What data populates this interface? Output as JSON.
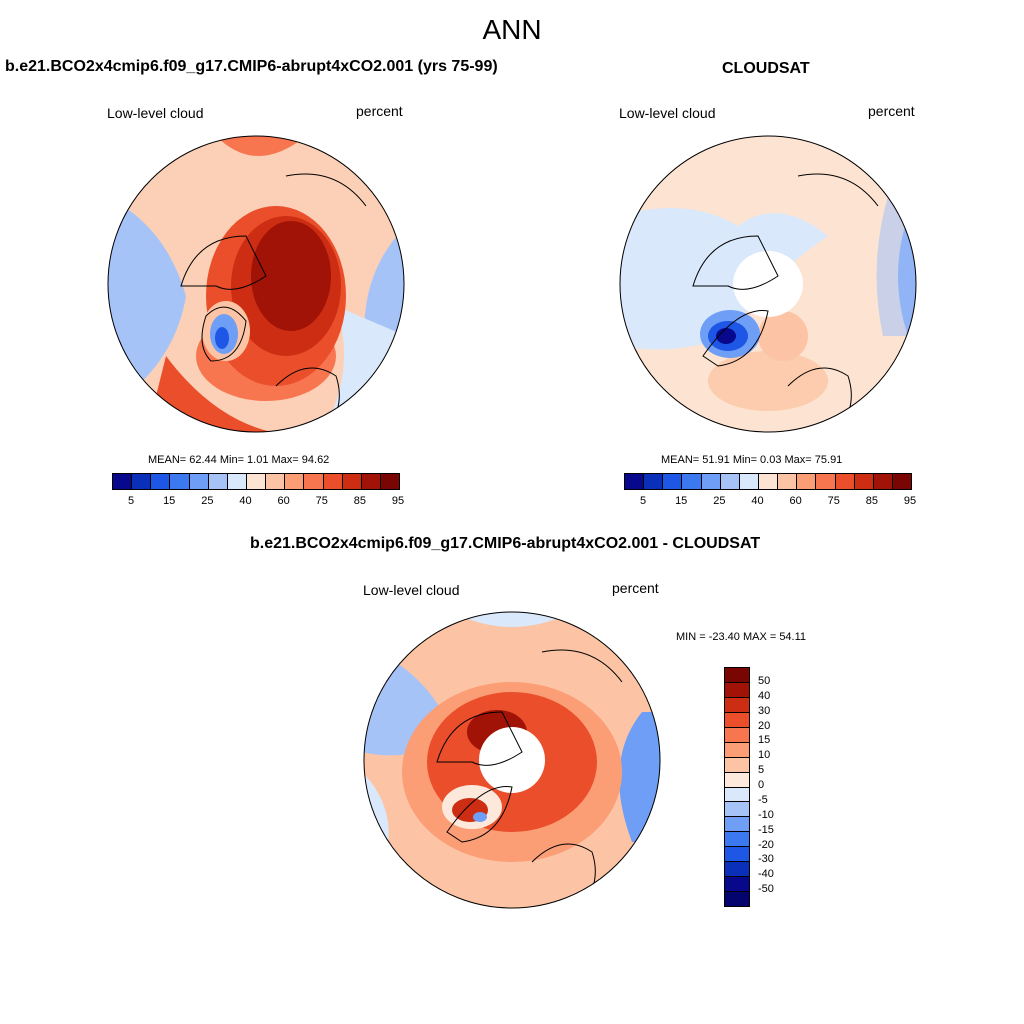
{
  "title": "ANN",
  "panels": {
    "model": {
      "header": "b.e21.BCO2x4cmip6.f09_g17.CMIP6-abrupt4xCO2.001 (yrs 75-99)",
      "left_label": "Low-level cloud",
      "right_label": "percent",
      "stats": "MEAN=  62.44  Min=   1.01  Max=  94.62"
    },
    "obs": {
      "header": "CLOUDSAT",
      "left_label": "Low-level cloud",
      "right_label": "percent",
      "stats": "MEAN=  51.91  Min=   0.03  Max=  75.91"
    },
    "diff": {
      "header": "b.e21.BCO2x4cmip6.f09_g17.CMIP6-abrupt4xCO2.001 - CLOUDSAT",
      "left_label": "Low-level cloud",
      "right_label": "percent",
      "stats": "MIN = -23.40 MAX =  54.11"
    }
  },
  "colorbar_abs": {
    "colors": [
      "#08088c",
      "#0a2fb8",
      "#1e56e6",
      "#3c78f0",
      "#6e9ef5",
      "#a6c3f7",
      "#d9e8fb",
      "#fde4d2",
      "#fcc4a4",
      "#fb9e76",
      "#f77650",
      "#ea4e2a",
      "#cd2d12",
      "#a11306",
      "#7a0603"
    ],
    "tick_labels": [
      "5",
      "15",
      "25",
      "40",
      "60",
      "75",
      "85",
      "95"
    ]
  },
  "colorbar_diff": {
    "colors": [
      "#7a0603",
      "#a11306",
      "#cd2d12",
      "#ea4e2a",
      "#f77650",
      "#fb9e76",
      "#fcc4a4",
      "#fde9dc",
      "#d9e8fb",
      "#a6c3f7",
      "#6e9ef5",
      "#3c78f0",
      "#1e56e6",
      "#0a2fb8",
      "#08088c",
      "#04046e"
    ],
    "tick_labels": [
      "50",
      "40",
      "30",
      "20",
      "15",
      "10",
      "5",
      "0",
      "-5",
      "-10",
      "-15",
      "-20",
      "-30",
      "-40",
      "-50"
    ]
  }
}
